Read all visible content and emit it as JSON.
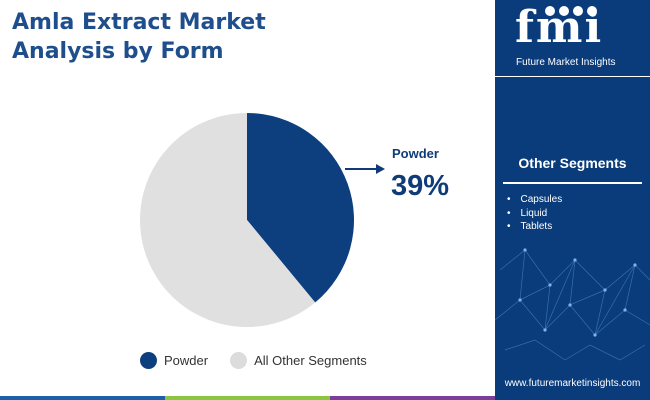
{
  "title": "Amla Extract Market\nAnalysis by Form",
  "chart_data": {
    "type": "pie",
    "slices": [
      {
        "label": "Powder",
        "value": 39,
        "color": "#0d3f7f"
      },
      {
        "label": "All Other Segments",
        "value": 61,
        "color": "#e0e0e0"
      }
    ],
    "start_angle_deg": 0,
    "direction": "clockwise"
  },
  "callout": {
    "label": "Powder",
    "value": "39%"
  },
  "legend": [
    {
      "label": "Powder",
      "color": "#0d3f7f"
    },
    {
      "label": "All Other Segments",
      "color": "#dcdcdc"
    }
  ],
  "sidebar": {
    "brand": "fmi",
    "brand_sub": "Future Market Insights",
    "segments_title": "Other Segments",
    "segments": [
      "Capsules",
      "Liquid",
      "Tablets"
    ],
    "website": "www.futuremarketinsights.com"
  },
  "bottom_bar_colors": [
    "#1f5fa8",
    "#8ac63f",
    "#7b3f98"
  ]
}
